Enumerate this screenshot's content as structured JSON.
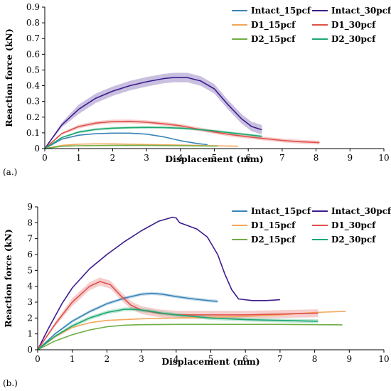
{
  "chart_data": [
    {
      "type": "line",
      "panel_label": "(a.)",
      "xlabel": "Displacement (mm)",
      "ylabel": "Reaction force (kN)",
      "xlim": [
        0,
        10
      ],
      "ylim": [
        0,
        0.9
      ],
      "xticks": [
        "0",
        "1",
        "2",
        "3",
        "4",
        "5",
        "6",
        "7",
        "8",
        "9",
        "10"
      ],
      "yticks": [
        "0",
        "0.1",
        "0.2",
        "0.3",
        "0.4",
        "0.5",
        "0.6",
        "0.7",
        "0.8",
        "0.9"
      ],
      "grid": false,
      "legend": "top-right",
      "series": [
        {
          "name": "Intact_15pcf",
          "color": "#3a84b8",
          "x": [
            0,
            0.5,
            1,
            1.5,
            2,
            2.5,
            3,
            3.5,
            4,
            4.5,
            4.8
          ],
          "y": [
            0,
            0.06,
            0.085,
            0.095,
            0.098,
            0.098,
            0.092,
            0.075,
            0.05,
            0.032,
            0.025
          ],
          "band": 0
        },
        {
          "name": "Intact_30pcf",
          "color": "#3c1b8f",
          "x": [
            0,
            0.5,
            1,
            1.5,
            2,
            2.5,
            3,
            3.5,
            3.8,
            4.2,
            4.6,
            5.0,
            5.4,
            5.8,
            6.1,
            6.4
          ],
          "y": [
            0,
            0.15,
            0.25,
            0.32,
            0.365,
            0.4,
            0.425,
            0.445,
            0.452,
            0.452,
            0.43,
            0.38,
            0.28,
            0.19,
            0.14,
            0.12
          ],
          "band": 0.03
        },
        {
          "name": "D1_15pcf",
          "color": "#f2a65a",
          "x": [
            0,
            0.5,
            1,
            1.5,
            2,
            2.5,
            3,
            4,
            5,
            5.7
          ],
          "y": [
            0,
            0.02,
            0.028,
            0.03,
            0.03,
            0.028,
            0.026,
            0.022,
            0.018,
            0.015
          ],
          "band": 0
        },
        {
          "name": "D1_30pcf",
          "color": "#e0504a",
          "x": [
            0,
            0.5,
            1,
            1.5,
            2,
            2.5,
            3,
            3.5,
            4,
            4.5,
            5,
            5.5,
            6,
            6.5,
            7,
            7.5,
            8.1
          ],
          "y": [
            0,
            0.095,
            0.14,
            0.162,
            0.172,
            0.173,
            0.168,
            0.158,
            0.145,
            0.125,
            0.105,
            0.088,
            0.075,
            0.063,
            0.052,
            0.044,
            0.038
          ],
          "band": 0.012
        },
        {
          "name": "D2_15pcf",
          "color": "#6fae45",
          "x": [
            0,
            0.5,
            1,
            2,
            3,
            4,
            5,
            5.1
          ],
          "y": [
            0,
            0.015,
            0.018,
            0.02,
            0.02,
            0.018,
            0.016,
            0.016
          ],
          "band": 0
        },
        {
          "name": "D2_30pcf",
          "color": "#1aa870",
          "x": [
            0,
            0.5,
            1,
            1.5,
            2,
            2.5,
            3,
            3.5,
            4,
            4.5,
            5,
            5.5,
            6,
            6.4
          ],
          "y": [
            0,
            0.07,
            0.105,
            0.122,
            0.13,
            0.133,
            0.135,
            0.134,
            0.13,
            0.122,
            0.112,
            0.1,
            0.088,
            0.078
          ],
          "band": 0.008
        }
      ]
    },
    {
      "type": "line",
      "panel_label": "(b.)",
      "xlabel": "Displacement (mm)",
      "ylabel": "Reaction force (kN)",
      "xlim": [
        0,
        10
      ],
      "ylim": [
        0,
        9
      ],
      "xticks": [
        "0",
        "1",
        "2",
        "3",
        "4",
        "5",
        "6",
        "7",
        "8",
        "9",
        "10"
      ],
      "yticks": [
        "0",
        "1",
        "2",
        "3",
        "4",
        "5",
        "6",
        "7",
        "8",
        "9"
      ],
      "grid": false,
      "legend": "top-right",
      "series": [
        {
          "name": "Intact_15pcf",
          "color": "#3a84b8",
          "x": [
            0,
            0.5,
            1,
            1.5,
            2,
            2.5,
            3,
            3.3,
            3.6,
            4,
            4.5,
            5,
            5.2
          ],
          "y": [
            0,
            1.0,
            1.8,
            2.4,
            2.9,
            3.25,
            3.5,
            3.55,
            3.5,
            3.35,
            3.2,
            3.08,
            3.05
          ],
          "band": 0.1
        },
        {
          "name": "Intact_30pcf",
          "color": "#3c1b8f",
          "x": [
            0,
            0.3,
            0.7,
            1,
            1.5,
            2,
            2.5,
            3,
            3.5,
            3.9,
            4.0,
            4.1,
            4.3,
            4.6,
            4.9,
            5.2,
            5.4,
            5.6,
            5.8,
            6.2,
            6.6,
            7.0
          ],
          "y": [
            0,
            1.3,
            2.9,
            3.9,
            5.1,
            6.0,
            6.8,
            7.5,
            8.1,
            8.35,
            8.3,
            8.0,
            7.85,
            7.6,
            7.1,
            6.0,
            4.8,
            3.8,
            3.2,
            3.1,
            3.1,
            3.15
          ],
          "band": 0
        },
        {
          "name": "D1_15pcf",
          "color": "#f2a65a",
          "x": [
            0,
            0.5,
            1,
            1.5,
            2,
            3,
            4,
            5,
            6,
            7,
            8,
            8.9
          ],
          "y": [
            0,
            0.8,
            1.4,
            1.7,
            1.85,
            1.95,
            2.0,
            2.05,
            2.1,
            2.2,
            2.35,
            2.42
          ],
          "band": 0
        },
        {
          "name": "D1_30pcf",
          "color": "#e0504a",
          "x": [
            0,
            0.5,
            1,
            1.5,
            1.8,
            2.1,
            2.4,
            2.7,
            3,
            3.5,
            4,
            5,
            6,
            7,
            8,
            8.1
          ],
          "y": [
            0,
            1.6,
            3.0,
            4.0,
            4.3,
            4.1,
            3.4,
            2.8,
            2.5,
            2.3,
            2.2,
            2.2,
            2.2,
            2.25,
            2.3,
            2.3
          ],
          "band": 0.25
        },
        {
          "name": "D2_15pcf",
          "color": "#6fae45",
          "x": [
            0,
            0.5,
            1,
            1.5,
            2,
            2.5,
            3,
            4,
            5,
            6,
            7,
            8,
            8.8
          ],
          "y": [
            0,
            0.55,
            0.95,
            1.25,
            1.45,
            1.55,
            1.58,
            1.6,
            1.6,
            1.6,
            1.6,
            1.58,
            1.57
          ],
          "band": 0
        },
        {
          "name": "D2_30pcf",
          "color": "#1aa870",
          "x": [
            0,
            0.5,
            1,
            1.5,
            2,
            2.5,
            2.8,
            3.2,
            3.6,
            4,
            5,
            6,
            7,
            8,
            8.1
          ],
          "y": [
            0,
            0.85,
            1.5,
            2.0,
            2.35,
            2.55,
            2.55,
            2.45,
            2.3,
            2.2,
            2.0,
            1.9,
            1.85,
            1.8,
            1.8
          ],
          "band": 0.12
        }
      ]
    }
  ]
}
